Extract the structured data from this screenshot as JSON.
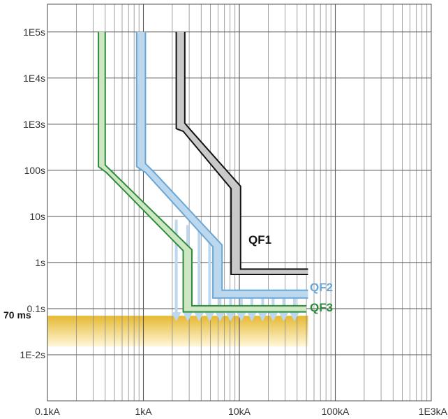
{
  "chart_data": {
    "type": "line",
    "title": "",
    "xlabel": "",
    "ylabel": "",
    "x_scale": "log",
    "y_scale": "log",
    "xlim": [
      0.1,
      1000
    ],
    "ylim": [
      0.001,
      400000
    ],
    "grid": true,
    "x_ticks": [
      {
        "value": 0.1,
        "label": "0.1kA"
      },
      {
        "value": 1,
        "label": "1kA"
      },
      {
        "value": 10,
        "label": "10kA"
      },
      {
        "value": 100,
        "label": "100kA"
      },
      {
        "value": 1000,
        "label": "1E3kA"
      }
    ],
    "y_ticks": [
      {
        "value": 100000,
        "label": "1E5s"
      },
      {
        "value": 10000,
        "label": "1E4s"
      },
      {
        "value": 1000,
        "label": "1E3s"
      },
      {
        "value": 100,
        "label": "100s"
      },
      {
        "value": 10,
        "label": "10s"
      },
      {
        "value": 1,
        "label": "1s"
      },
      {
        "value": 0.1,
        "label": "0.1s"
      },
      {
        "value": 0.01,
        "label": "1E-2s"
      }
    ],
    "series": [
      {
        "name": "QF1",
        "color": "#111111",
        "band_fill": "#c9c9c9",
        "label_color": "#111111",
        "lower": {
          "x": [
            2.2,
            2.2,
            2.6,
            8.2,
            8.2,
            52
          ],
          "y": [
            100000,
            800,
            700,
            40,
            0.55,
            0.55
          ]
        },
        "upper": {
          "x": [
            2.7,
            2.7,
            3.1,
            10.3,
            10.3,
            52
          ],
          "y": [
            100000,
            1050,
            750,
            45,
            0.72,
            0.72
          ]
        }
      },
      {
        "name": "QF2",
        "color": "#6aa6d4",
        "band_fill": "#bcd8ef",
        "label_color": "#6aa6d4",
        "lower": {
          "x": [
            0.85,
            0.85,
            1.05,
            5.3,
            5.3,
            52
          ],
          "y": [
            100000,
            120,
            90,
            2.2,
            0.17,
            0.17
          ]
        },
        "upper": {
          "x": [
            1.05,
            1.05,
            1.3,
            6.6,
            6.6,
            52
          ],
          "y": [
            100000,
            140,
            90,
            2.4,
            0.25,
            0.25
          ]
        }
      },
      {
        "name": "QF3",
        "color": "#2e8b3a",
        "band_fill": "#cde6c4",
        "label_color": "#2e8b3a",
        "lower": {
          "x": [
            0.34,
            0.34,
            0.41,
            2.6,
            2.6,
            50
          ],
          "y": [
            100000,
            120,
            90,
            1.8,
            0.085,
            0.085
          ]
        },
        "upper": {
          "x": [
            0.4,
            0.4,
            0.48,
            3.2,
            3.2,
            50
          ],
          "y": [
            100000,
            130,
            90,
            1.9,
            0.115,
            0.115
          ]
        }
      }
    ],
    "threshold": {
      "label": "70 ms",
      "y": 0.07,
      "band_y": [
        0.015,
        0.07
      ],
      "x_end": 52,
      "fill_top": "#e6b931",
      "fill_bottom": "#fff7da"
    },
    "arrows": {
      "color": "#bcd8ef",
      "x": [
        2.2,
        2.9,
        3.8,
        4.9,
        6.3,
        8.1,
        10.5,
        13.5,
        17.5,
        22.5,
        29,
        37.5
      ],
      "y_from": [
        8.5,
        6.5,
        5.0,
        3.5,
        2.5,
        0.18,
        0.18,
        0.18,
        0.18,
        0.18,
        0.18,
        0.18
      ],
      "y_to": 0.055
    }
  }
}
